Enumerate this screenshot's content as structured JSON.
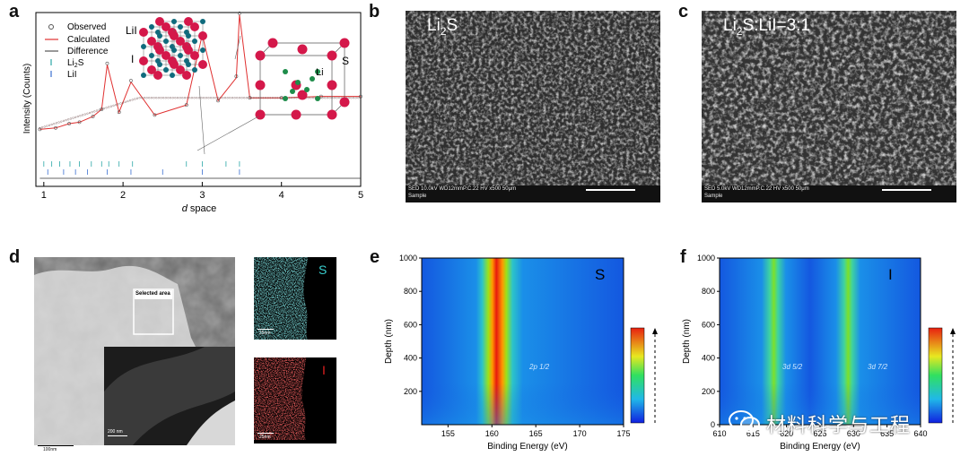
{
  "panels": {
    "a": "a",
    "b": "b",
    "c": "c",
    "d": "d",
    "e": "e",
    "f": "f"
  },
  "panel_a": {
    "legend": [
      "Observed",
      "Calculated",
      "Difference",
      "Li2S",
      "LiI"
    ],
    "ylabel": "Intensity (Counts)",
    "xlabel_italic": "d",
    "xlabel_rest": " space",
    "xticks": [
      "1",
      "2",
      "3",
      "4",
      "5"
    ],
    "crystal_labels": {
      "lii_left_top": "LiI",
      "lii_left_mid": "I",
      "li2s_li": "Li",
      "li2s_s": "S"
    }
  },
  "panel_b": {
    "label_main": "Li",
    "label_sub": "2",
    "label_end": "S",
    "info_line1": "SED 10.0kV WD12mmP.C.22  HV    x500       50μm",
    "info_line2": "Sample"
  },
  "panel_c": {
    "label_main": "Li",
    "label_sub": "2",
    "label_end": "S:LiI=3:1",
    "info_line1": "SED 5.0kV  WD12mmP.C.22  HV    x500       50μm",
    "info_line2": "Sample"
  },
  "panel_d": {
    "selected_area": "Selected area",
    "scale_main": "100nm",
    "scale_inset": "200 nm",
    "scale_map_s": "25nm",
    "scale_map_i": "25nm",
    "map_s_label": "S",
    "map_i_label": "I"
  },
  "panel_e": {
    "element": "S",
    "annotation": "2p 1/2",
    "ylabel": "Depth (nm)",
    "xlabel": "Binding Energy (eV)",
    "xticks": [
      "155",
      "160",
      "165",
      "170",
      "175"
    ],
    "yticks": [
      "200",
      "400",
      "600",
      "800",
      "1000"
    ]
  },
  "panel_f": {
    "element": "I",
    "annotation_1": "3d 5/2",
    "annotation_2": "3d 7/2",
    "ylabel": "Depth (nm)",
    "xlabel": "Binding Energy (eV)",
    "xticks": [
      "610",
      "615",
      "620",
      "625",
      "630",
      "635",
      "640"
    ],
    "yticks": [
      "0",
      "200",
      "400",
      "600",
      "800",
      "1000"
    ]
  },
  "watermark": "材料科学与工程",
  "colors": {
    "observed": "#555555",
    "calculated": "#e03030",
    "difference": "#333333",
    "li2s_ticks": "#2aa7a7",
    "lii_ticks": "#3a6fd0",
    "map_s": "#3ad0d0",
    "map_i": "#e02020"
  },
  "chart_data": [
    {
      "type": "line",
      "panel": "a",
      "xlabel": "d space",
      "ylabel": "Intensity (Counts)",
      "xlim": [
        0.9,
        5
      ],
      "x_ticks": [
        1,
        2,
        3,
        4,
        5
      ],
      "series": [
        {
          "name": "Observed",
          "x": [
            0.95,
            1.15,
            1.32,
            1.45,
            1.62,
            1.73,
            1.8,
            1.95,
            2.1,
            2.4,
            2.8,
            3.0,
            3.2,
            3.43,
            3.47,
            3.6,
            4.0,
            4.5,
            5.0
          ],
          "y": [
            16,
            17,
            20,
            21,
            25,
            30,
            62,
            28,
            50,
            26,
            33,
            83,
            36,
            53,
            97,
            38,
            38,
            39,
            39
          ]
        },
        {
          "name": "Calculated",
          "x": [
            0.95,
            1.15,
            1.32,
            1.45,
            1.62,
            1.73,
            1.8,
            1.95,
            2.1,
            2.4,
            2.8,
            3.0,
            3.2,
            3.43,
            3.47,
            3.6,
            4.0,
            4.5,
            5.0
          ],
          "y": [
            16,
            17,
            20,
            21,
            25,
            30,
            61,
            28,
            49,
            26,
            33,
            82,
            36,
            52,
            96,
            38,
            38,
            39,
            39
          ]
        },
        {
          "name": "Difference",
          "x": [
            0.95,
            5.0
          ],
          "y": [
            2,
            2
          ]
        }
      ],
      "tick_marks": {
        "Li2S": [
          1.0,
          1.1,
          1.2,
          1.33,
          1.45,
          1.6,
          1.73,
          1.82,
          1.95,
          2.12,
          2.8,
          3.0,
          3.3,
          3.47
        ],
        "LiI": [
          1.05,
          1.25,
          1.4,
          1.55,
          1.8,
          2.1,
          2.5,
          3.0,
          3.47
        ]
      }
    },
    {
      "type": "heatmap",
      "panel": "e",
      "xlabel": "Binding Energy (eV)",
      "ylabel": "Depth (nm)",
      "xlim": [
        152,
        175
      ],
      "ylim": [
        0,
        1000
      ],
      "peaks": [
        {
          "center": 160,
          "label": "2p 1/2",
          "intensity": 1.0
        }
      ]
    },
    {
      "type": "heatmap",
      "panel": "f",
      "xlabel": "Binding Energy (eV)",
      "ylabel": "Depth (nm)",
      "xlim": [
        610,
        640
      ],
      "ylim": [
        0,
        1000
      ],
      "peaks": [
        {
          "center": 619,
          "label": "3d 5/2",
          "intensity": 0.7
        },
        {
          "center": 630.5,
          "label": "3d 7/2",
          "intensity": 0.7
        }
      ]
    }
  ]
}
